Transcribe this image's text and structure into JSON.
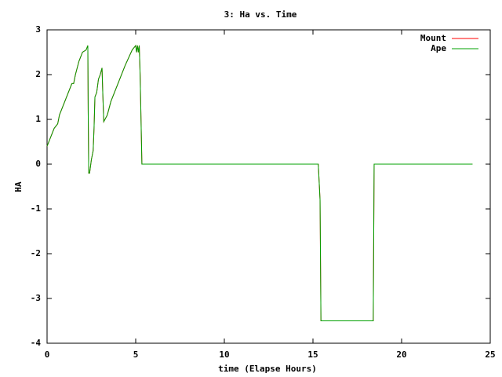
{
  "chart_data": {
    "type": "line",
    "title": "3: Ha vs. Time",
    "x_label": "time (Elapse Hours)",
    "y_label": "HA",
    "x": [
      0,
      0.2,
      0.4,
      0.6,
      0.7,
      1.0,
      1.3,
      1.4,
      1.5,
      1.6,
      1.8,
      2.0,
      2.2,
      2.3,
      2.32,
      2.35,
      2.4,
      2.5,
      2.6,
      2.65,
      2.7,
      2.8,
      2.9,
      3.0,
      3.1,
      3.15,
      3.2,
      3.4,
      3.6,
      4.0,
      4.4,
      4.8,
      5.0,
      5.05,
      5.1,
      5.15,
      5.2,
      5.25,
      5.35,
      15.3,
      15.4,
      15.45,
      18.4,
      18.45,
      24
    ],
    "series": [
      {
        "name": "Mount",
        "color": "#ff0000",
        "values": [
          0.4,
          0.6,
          0.8,
          0.9,
          1.1,
          1.4,
          1.7,
          1.8,
          1.8,
          2.0,
          2.3,
          2.5,
          2.55,
          2.65,
          1.2,
          -0.2,
          -0.2,
          0.1,
          0.3,
          0.8,
          1.5,
          1.6,
          1.9,
          2.0,
          2.15,
          1.5,
          0.95,
          1.1,
          1.4,
          1.8,
          2.2,
          2.55,
          2.65,
          2.5,
          2.65,
          2.5,
          2.65,
          2.0,
          0,
          0,
          -0.8,
          -3.5,
          -3.5,
          0,
          0
        ]
      },
      {
        "name": "Ape",
        "color": "#00a000",
        "values": [
          0.4,
          0.6,
          0.8,
          0.9,
          1.1,
          1.4,
          1.7,
          1.8,
          1.8,
          2.0,
          2.3,
          2.5,
          2.55,
          2.65,
          1.2,
          -0.2,
          -0.2,
          0.1,
          0.3,
          0.8,
          1.5,
          1.6,
          1.9,
          2.0,
          2.15,
          1.5,
          0.95,
          1.1,
          1.4,
          1.8,
          2.2,
          2.55,
          2.65,
          2.5,
          2.65,
          2.5,
          2.65,
          2.0,
          0,
          0,
          -0.8,
          -3.5,
          -3.5,
          0,
          0
        ]
      }
    ],
    "xlim": [
      0,
      25
    ],
    "xticks": [
      0,
      5,
      10,
      15,
      20,
      25
    ],
    "ylim": [
      -4,
      3
    ],
    "yticks": [
      -4,
      -3,
      -2,
      -1,
      0,
      1,
      2,
      3
    ],
    "legend": "upper right"
  }
}
